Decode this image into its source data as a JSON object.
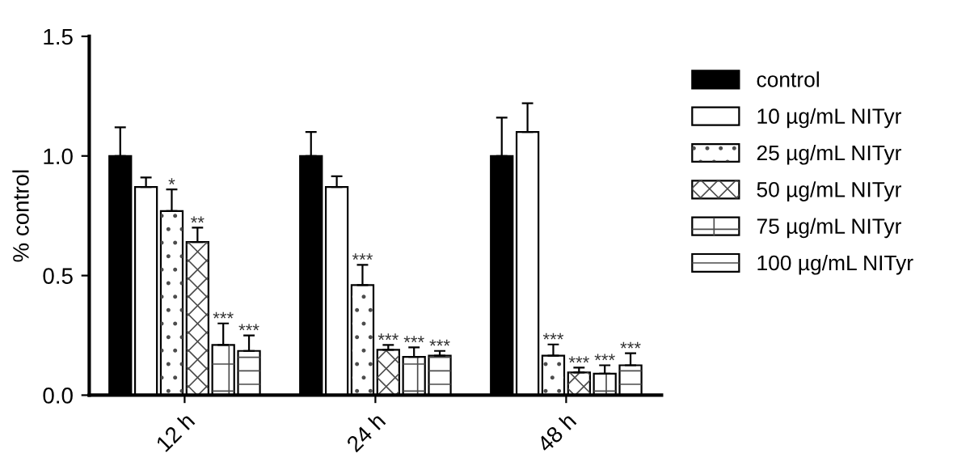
{
  "chart_data": {
    "type": "bar",
    "ylabel": "% control",
    "categories": [
      "12 h",
      "24 h",
      "48 h"
    ],
    "series": [
      {
        "name": "control",
        "color": "#000000",
        "values": [
          1.0,
          1.0,
          1.0
        ],
        "errors": [
          0.12,
          0.1,
          0.16
        ]
      },
      {
        "name": "10 µg/mL NITyr",
        "color": "#ffffff",
        "values": [
          0.87,
          0.87,
          1.1
        ],
        "errors": [
          0.04,
          0.045,
          0.12
        ]
      },
      {
        "name": "25 µg/mL NITyr",
        "color": "#ffffff",
        "values": [
          0.77,
          0.46,
          0.165
        ],
        "errors": [
          0.09,
          0.085,
          0.047
        ],
        "value_labels": [
          "*",
          "***",
          "***"
        ]
      },
      {
        "name": "50 µg/mL NITyr",
        "color": "#ffffff",
        "values": [
          0.64,
          0.19,
          0.095
        ],
        "errors": [
          0.06,
          0.02,
          0.02
        ],
        "value_labels": [
          "**",
          "***",
          "***"
        ]
      },
      {
        "name": "75 µg/mL NITyr",
        "color": "#ffffff",
        "values": [
          0.21,
          0.16,
          0.09
        ],
        "errors": [
          0.09,
          0.04,
          0.035
        ],
        "value_labels": [
          "***",
          "***",
          "***"
        ]
      },
      {
        "name": "100 µg/mL NITyr",
        "color": "#ffffff",
        "values": [
          0.185,
          0.165,
          0.125
        ],
        "errors": [
          0.065,
          0.02,
          0.05
        ],
        "value_labels": [
          "***",
          "***",
          "***"
        ]
      }
    ],
    "ylim": [
      0,
      1.5
    ],
    "yticks": [
      {
        "value": 0,
        "label": "0.0"
      },
      {
        "value": 0.5,
        "label": "0.5"
      },
      {
        "value": 1,
        "label": "1.0"
      },
      {
        "value": 1.5,
        "label": "1.5"
      }
    ],
    "grid": false,
    "legend": "right"
  }
}
